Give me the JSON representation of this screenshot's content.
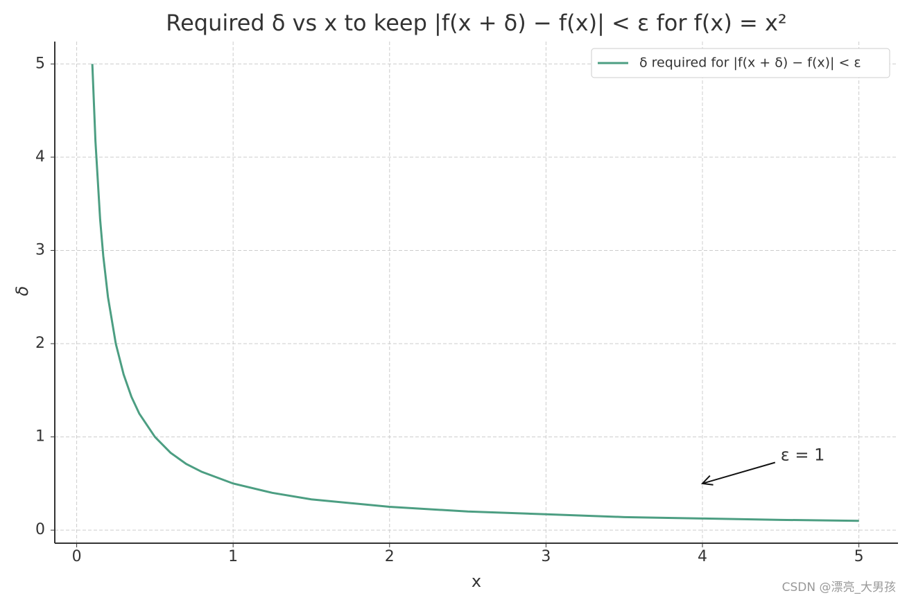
{
  "chart_data": {
    "type": "line",
    "title": "Required δ vs x to keep |f(x + δ) − f(x)| < ε for f(x) = x²",
    "xlabel": "x",
    "ylabel": "δ",
    "x": [
      0.1,
      0.12,
      0.15,
      0.17,
      0.2,
      0.25,
      0.3,
      0.35,
      0.4,
      0.5,
      0.6,
      0.7,
      0.8,
      1,
      1.25,
      1.5,
      2,
      2.5,
      3,
      3.5,
      4,
      4.5,
      5
    ],
    "series": [
      {
        "name": "δ required for |f(x + δ) − f(x)| < ε",
        "color": "#4c9e82",
        "values": [
          5,
          4.17,
          3.33,
          2.94,
          2.5,
          2,
          1.67,
          1.43,
          1.25,
          1,
          0.83,
          0.71,
          0.625,
          0.5,
          0.4,
          0.33,
          0.25,
          0.2,
          0.17,
          0.14,
          0.125,
          0.11,
          0.1
        ]
      }
    ],
    "xlim": [
      -0.14,
      5.25
    ],
    "ylim": [
      -0.14,
      5.24
    ],
    "xticks": [
      0,
      1,
      2,
      3,
      4,
      5
    ],
    "yticks": [
      0,
      1,
      2,
      3,
      4,
      5
    ],
    "grid": true,
    "legend": "upper right",
    "annotation": {
      "text": "ε = 1",
      "xy": [
        4,
        0.5
      ],
      "xytext": [
        4.5,
        0.8
      ]
    },
    "watermark": "CSDN @漂亮_大男孩"
  }
}
